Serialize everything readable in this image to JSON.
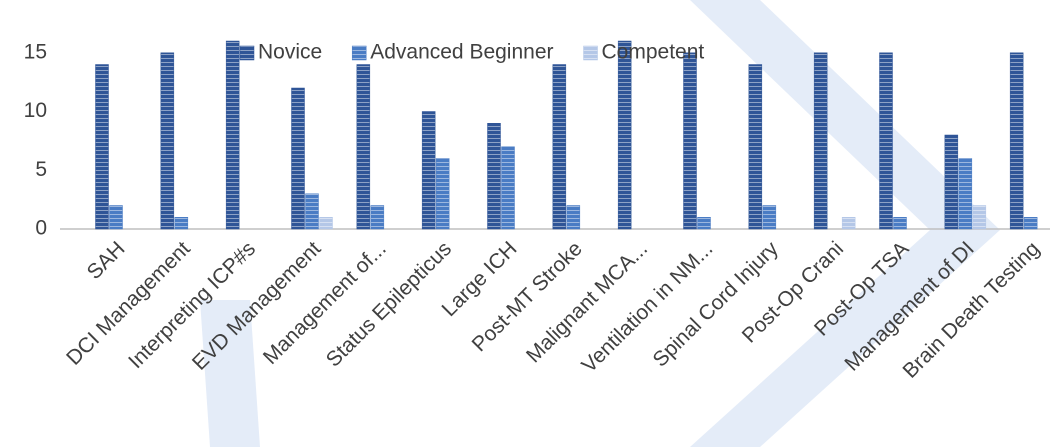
{
  "chart_data": {
    "type": "bar",
    "categories": [
      "SAH",
      "DCI Management",
      "Interpreting ICP#s",
      "EVD Management",
      "Management of...",
      "Status Epilepticus",
      "Large ICH",
      "Post-MT Stroke",
      "Malignant MCA...",
      "Ventilation in NM...",
      "Spinal Cord Injury",
      "Post-Op Crani",
      "Post-Op TSA",
      "Management of DI",
      "Brain Death Testing"
    ],
    "series": [
      {
        "name": "Novice",
        "color": "#2f5597",
        "values": [
          14,
          15,
          16,
          12,
          14,
          10,
          9,
          14,
          16,
          15,
          14,
          15,
          15,
          8,
          15
        ]
      },
      {
        "name": "Advanced Beginner",
        "color": "#4a7cc4",
        "values": [
          2,
          1,
          0,
          3,
          2,
          6,
          7,
          2,
          0,
          1,
          2,
          0,
          1,
          6,
          1
        ]
      },
      {
        "name": "Competent",
        "color": "#b4c7e7",
        "values": [
          0,
          0,
          0,
          1,
          0,
          0,
          0,
          0,
          0,
          0,
          0,
          1,
          0,
          2,
          0
        ]
      }
    ],
    "ylim": [
      0,
      20
    ],
    "yticks": [
      0,
      5,
      10,
      15,
      20
    ],
    "grid": false,
    "legend": "top"
  }
}
